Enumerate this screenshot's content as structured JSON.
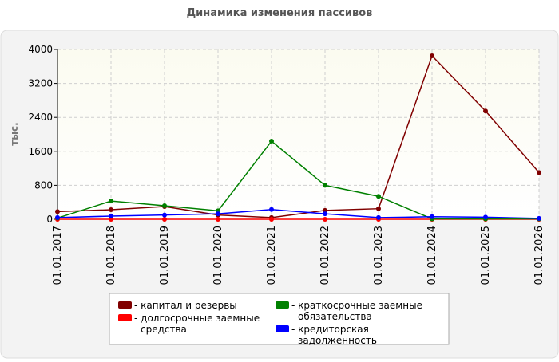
{
  "chart_data": {
    "type": "line",
    "title": "Динамика изменения пассивов",
    "y_label": "тыс.",
    "categories": [
      "01.01.2017",
      "01.01.2018",
      "01.01.2019",
      "01.01.2020",
      "01.01.2021",
      "01.01.2022",
      "01.01.2023",
      "01.01.2024",
      "01.01.2025",
      "01.01.2026"
    ],
    "series": [
      {
        "name": "- капитал и резервы",
        "color": "#800000",
        "values": [
          180,
          225,
          300,
          100,
          40,
          210,
          250,
          3850,
          2550,
          1100
        ]
      },
      {
        "name": "- долгосрочные заемные средства",
        "color": "#ff0000",
        "values": [
          0,
          0,
          0,
          0,
          0,
          0,
          0,
          0,
          0,
          0
        ]
      },
      {
        "name": "- краткосрочные заемные обязательства",
        "color": "#008000",
        "values": [
          30,
          430,
          320,
          200,
          1840,
          800,
          540,
          10,
          10,
          10
        ]
      },
      {
        "name": "- кредиторская задолженность",
        "color": "#0000ff",
        "values": [
          40,
          75,
          100,
          130,
          230,
          130,
          40,
          60,
          50,
          20
        ]
      }
    ],
    "ylim": [
      0,
      4000
    ],
    "yticks": [
      0,
      800,
      1600,
      2400,
      3200,
      4000
    ],
    "grid": true
  }
}
